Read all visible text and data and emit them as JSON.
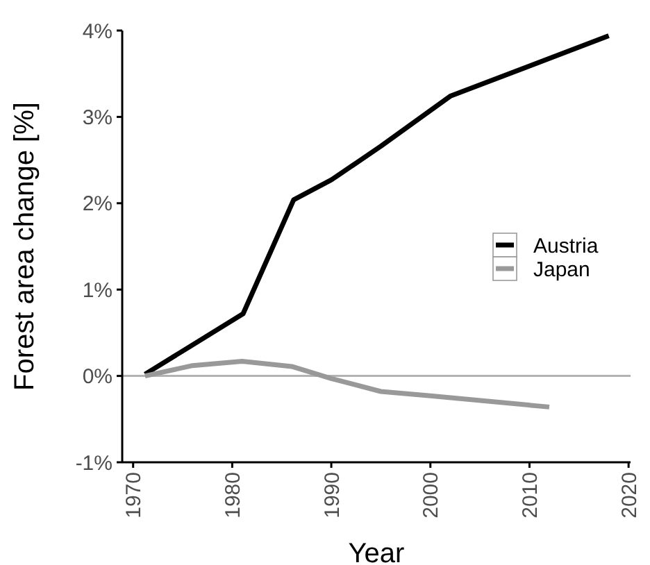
{
  "chart_data": {
    "type": "line",
    "xlabel": "Year",
    "ylabel": "Forest area change [%]",
    "xlim": [
      1968.9,
      2020.2
    ],
    "xticks": [
      1970,
      1980,
      1990,
      2000,
      2010,
      2020
    ],
    "ylim": [
      -1,
      4
    ],
    "yticks": [
      {
        "value": -1,
        "label": "-1%"
      },
      {
        "value": 0,
        "label": "0%"
      },
      {
        "value": 1,
        "label": "1%"
      },
      {
        "value": 2,
        "label": "2%"
      },
      {
        "value": 3,
        "label": "3%"
      },
      {
        "value": 4,
        "label": "4%"
      }
    ],
    "series": [
      {
        "name": "Austria",
        "color": "#000000",
        "x": [
          1971.2,
          1981.1,
          1986.2,
          1990,
          1995,
          2002,
          2018
        ],
        "values": [
          0.02,
          0.72,
          2.04,
          2.27,
          2.66,
          3.24,
          3.94
        ]
      },
      {
        "name": "Japan",
        "color": "#999999",
        "x": [
          1971.2,
          1976,
          1981,
          1986,
          1990,
          1995,
          2000,
          2012
        ],
        "values": [
          0,
          0.12,
          0.17,
          0.11,
          -0.03,
          -0.18,
          -0.23,
          -0.36
        ]
      }
    ],
    "ref_lines": [
      {
        "axis": "y",
        "value": 0,
        "color": "#b3b3b3"
      }
    ],
    "grid": false,
    "legend": "right"
  }
}
